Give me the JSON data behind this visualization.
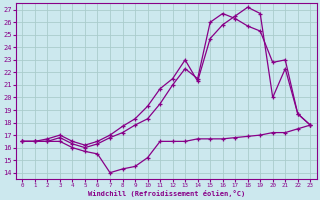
{
  "xlabel": "Windchill (Refroidissement éolien,°C)",
  "xlim": [
    -0.5,
    23.5
  ],
  "ylim": [
    13.5,
    27.5
  ],
  "xticks": [
    0,
    1,
    2,
    3,
    4,
    5,
    6,
    7,
    8,
    9,
    10,
    11,
    12,
    13,
    14,
    15,
    16,
    17,
    18,
    19,
    20,
    21,
    22,
    23
  ],
  "yticks": [
    14,
    15,
    16,
    17,
    18,
    19,
    20,
    21,
    22,
    23,
    24,
    25,
    26,
    27
  ],
  "bg_color": "#cce8ee",
  "line_color": "#880088",
  "grid_color": "#aacccc",
  "line1_x": [
    0,
    1,
    2,
    3,
    4,
    5,
    6,
    7,
    8,
    9,
    10,
    11,
    12,
    13,
    14,
    15,
    16,
    17,
    18,
    19,
    20,
    21,
    22,
    23
  ],
  "line1_y": [
    16.5,
    16.5,
    16.5,
    16.5,
    16.0,
    15.7,
    15.5,
    14.0,
    14.3,
    14.5,
    15.2,
    16.5,
    16.5,
    16.5,
    16.7,
    16.7,
    16.7,
    16.8,
    16.9,
    17.0,
    17.2,
    17.2,
    17.5,
    17.8
  ],
  "line2_x": [
    0,
    1,
    2,
    3,
    4,
    5,
    6,
    7,
    8,
    9,
    10,
    11,
    12,
    13,
    14,
    15,
    16,
    17,
    18,
    19,
    20,
    21,
    22,
    23
  ],
  "line2_y": [
    16.5,
    16.5,
    16.5,
    16.8,
    16.3,
    16.0,
    16.3,
    16.8,
    17.2,
    17.8,
    18.3,
    19.5,
    21.0,
    22.3,
    21.5,
    26.0,
    26.7,
    26.3,
    25.7,
    25.3,
    22.8,
    23.0,
    18.7,
    17.8
  ],
  "line3_x": [
    0,
    1,
    2,
    3,
    4,
    5,
    6,
    7,
    8,
    9,
    10,
    11,
    12,
    13,
    14,
    15,
    16,
    17,
    18,
    19,
    20,
    21,
    22,
    23
  ],
  "line3_y": [
    16.5,
    16.5,
    16.7,
    17.0,
    16.5,
    16.2,
    16.5,
    17.0,
    17.7,
    18.3,
    19.3,
    20.7,
    21.5,
    23.0,
    21.3,
    24.7,
    25.8,
    26.5,
    27.2,
    26.7,
    20.0,
    22.3,
    18.7,
    17.8
  ]
}
